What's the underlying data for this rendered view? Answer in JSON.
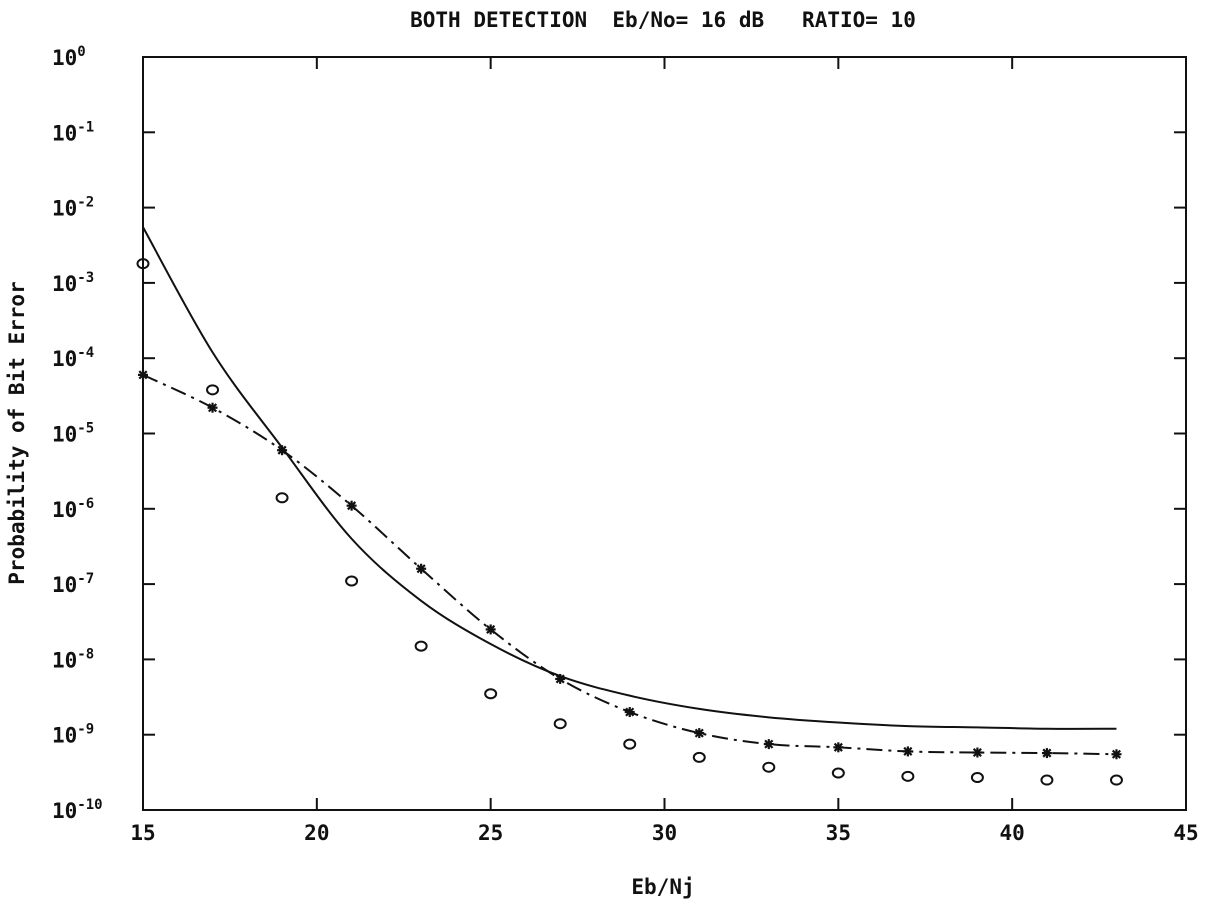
{
  "chart_data": {
    "type": "line",
    "title": "BOTH DETECTION  Eb/No= 16 dB   RATIO= 10",
    "xlabel": "Eb/Nj",
    "ylabel": "Probability of Bit Error",
    "xlim": [
      15,
      45
    ],
    "ylim": [
      1e-10,
      1
    ],
    "yscale": "log",
    "grid": false,
    "x_ticks": [
      "15",
      "20",
      "25",
      "30",
      "35",
      "40",
      "45"
    ],
    "y_ticks": [
      {
        "base": "10",
        "exp": "0"
      },
      {
        "base": "10",
        "exp": "-1"
      },
      {
        "base": "10",
        "exp": "-2"
      },
      {
        "base": "10",
        "exp": "-3"
      },
      {
        "base": "10",
        "exp": "-4"
      },
      {
        "base": "10",
        "exp": "-5"
      },
      {
        "base": "10",
        "exp": "-6"
      },
      {
        "base": "10",
        "exp": "-7"
      },
      {
        "base": "10",
        "exp": "-8"
      },
      {
        "base": "10",
        "exp": "-9"
      },
      {
        "base": "10",
        "exp": "-10"
      }
    ],
    "series": [
      {
        "style": "solid",
        "color": "#111111",
        "x": [
          15,
          17,
          19,
          21,
          23,
          25,
          27,
          29,
          31,
          33,
          35,
          37,
          39,
          41,
          43
        ],
        "y": [
          0.0055,
          0.00012,
          6.5e-06,
          4e-07,
          6e-08,
          1.6e-08,
          6e-09,
          3.3e-09,
          2.2e-09,
          1.7e-09,
          1.45e-09,
          1.3e-09,
          1.25e-09,
          1.2e-09,
          1.2e-09
        ]
      },
      {
        "style": "dash-dot",
        "marker": "asterisk",
        "color": "#111111",
        "x": [
          15,
          17,
          19,
          21,
          23,
          25,
          27,
          29,
          31,
          33,
          35,
          37,
          39,
          41,
          43
        ],
        "y": [
          6e-05,
          2.2e-05,
          6e-06,
          1.1e-06,
          1.6e-07,
          2.5e-08,
          5.5e-09,
          2e-09,
          1.05e-09,
          7.5e-10,
          6.8e-10,
          6e-10,
          5.8e-10,
          5.7e-10,
          5.5e-10
        ]
      },
      {
        "style": "markers",
        "marker": "circle",
        "color": "#111111",
        "x": [
          15,
          17,
          19,
          21,
          23,
          25,
          27,
          29,
          31,
          33,
          35,
          37,
          39,
          41,
          43
        ],
        "y": [
          0.0018,
          3.8e-05,
          1.4e-06,
          1.1e-07,
          1.5e-08,
          3.5e-09,
          1.4e-09,
          7.5e-10,
          5e-10,
          3.7e-10,
          3.1e-10,
          2.8e-10,
          2.7e-10,
          2.5e-10,
          2.5e-10
        ]
      }
    ]
  }
}
